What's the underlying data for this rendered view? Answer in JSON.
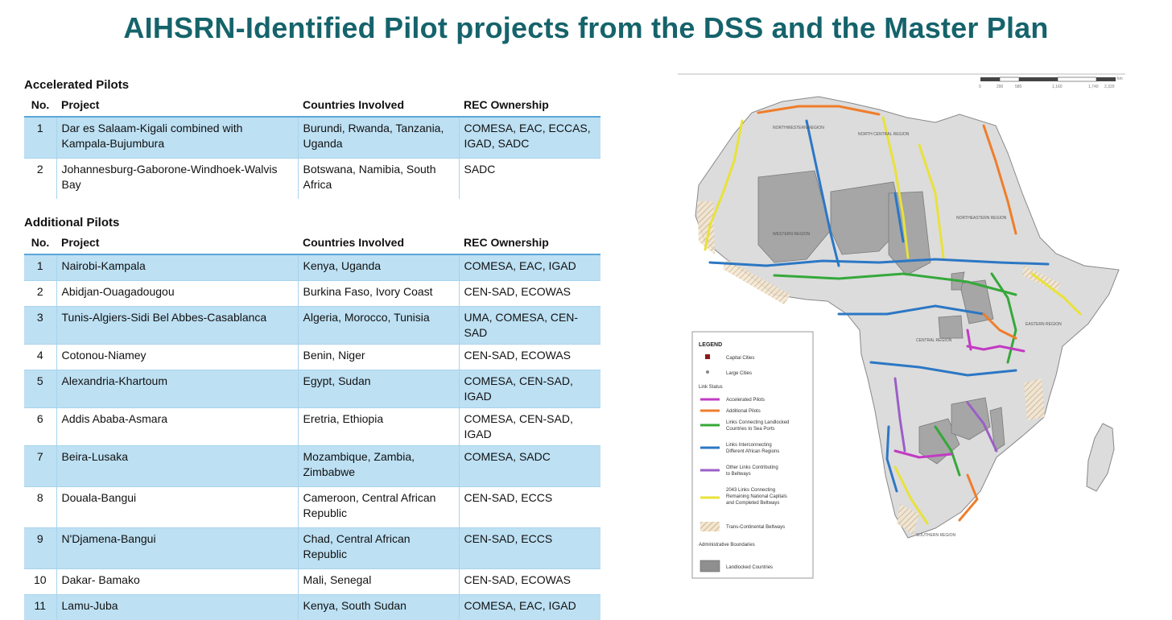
{
  "title": "AIHSRN-Identified Pilot projects from the DSS and the Master Plan",
  "accelerated": {
    "heading": "Accelerated Pilots",
    "columns": [
      "No.",
      "Project",
      "Countries Involved",
      "REC Ownership"
    ],
    "rows": [
      {
        "no": "1",
        "project": "Dar es Salaam-Kigali combined with Kampala-Bujumbura",
        "countries": "Burundi, Rwanda, Tanzania, Uganda",
        "rec": "COMESA, EAC, ECCAS, IGAD, SADC"
      },
      {
        "no": "2",
        "project": "Johannesburg-Gaborone-Windhoek-Walvis Bay",
        "countries": "Botswana, Namibia, South Africa",
        "rec": "SADC"
      }
    ]
  },
  "additional": {
    "heading": "Additional Pilots",
    "columns": [
      "No.",
      "Project",
      "Countries Involved",
      "REC Ownership"
    ],
    "rows": [
      {
        "no": "1",
        "project": "Nairobi-Kampala",
        "countries": "Kenya, Uganda",
        "rec": "COMESA, EAC, IGAD"
      },
      {
        "no": "2",
        "project": "Abidjan-Ouagadougou",
        "countries": "Burkina Faso, Ivory Coast",
        "rec": "CEN-SAD, ECOWAS"
      },
      {
        "no": "3",
        "project": "Tunis-Algiers-Sidi Bel Abbes-Casablanca",
        "countries": "Algeria, Morocco, Tunisia",
        "rec": "UMA, COMESA, CEN-SAD"
      },
      {
        "no": "4",
        "project": "Cotonou-Niamey",
        "countries": "Benin, Niger",
        "rec": "CEN-SAD,  ECOWAS"
      },
      {
        "no": "5",
        "project": "Alexandria-Khartoum",
        "countries": "Egypt, Sudan",
        "rec": "COMESA, CEN-SAD, IGAD"
      },
      {
        "no": "6",
        "project": "Addis Ababa-Asmara",
        "countries": "Eretria, Ethiopia",
        "rec": "COMESA, CEN-SAD, IGAD"
      },
      {
        "no": "7",
        "project": "Beira-Lusaka",
        "countries": "Mozambique, Zambia, Zimbabwe",
        "rec": "COMESA, SADC"
      },
      {
        "no": "8",
        "project": "Douala-Bangui",
        "countries": "Cameroon, Central African Republic",
        "rec": "CEN-SAD, ECCS"
      },
      {
        "no": "9",
        "project": "N'Djamena-Bangui",
        "countries": "Chad, Central African Republic",
        "rec": "CEN-SAD, ECCS"
      },
      {
        "no": "10",
        "project": "Dakar- Bamako",
        "countries": "Mali, Senegal",
        "rec": "CEN-SAD, ECOWAS"
      },
      {
        "no": "11",
        "project": "Lamu-Juba",
        "countries": "Kenya,  South Sudan",
        "rec": "COMESA, EAC, IGAD"
      }
    ]
  },
  "map": {
    "regions": [
      "NORTHWESTERN REGION",
      "NORTH CENTRAL REGION",
      "NORTHEASTERN REGION",
      "WESTERN REGION",
      "CENTRAL REGION",
      "EASTERN REGION",
      "SOUTHERN REGION"
    ],
    "scale_ticks": [
      "0",
      "290",
      "580",
      "1,160",
      "1,740",
      "2,320"
    ],
    "scale_unit": "km",
    "legend": {
      "title": "LEGEND",
      "capital": "Capital Cities",
      "large": "Large Cities",
      "link_status": "Link Status",
      "items": [
        {
          "label1": "Accelerated Pilots",
          "label2": "",
          "label3": "",
          "color": "#c23ac3"
        },
        {
          "label1": "Additional Pilots",
          "label2": "",
          "label3": "",
          "color": "#ef7d2b"
        },
        {
          "label1": "Links Connecting Landlocked",
          "label2": "Countries to Sea Ports",
          "label3": "",
          "color": "#35a83a"
        },
        {
          "label1": "Links Interconnecting",
          "label2": "Different African Regions",
          "label3": "",
          "color": "#2c77c4"
        },
        {
          "label1": "Other Links Contributing",
          "label2": "to Beltways",
          "label3": "",
          "color": "#9b5fc7"
        },
        {
          "label1": "2043 Links Connecting",
          "label2": "Remaining National Capitals",
          "label3": "and Completed Beltways",
          "color": "#e8e23a"
        }
      ],
      "beltways": "Trans-Continental Beltways",
      "admin": "Administrative Boundaries",
      "landlocked": "Landlocked Countries"
    }
  }
}
